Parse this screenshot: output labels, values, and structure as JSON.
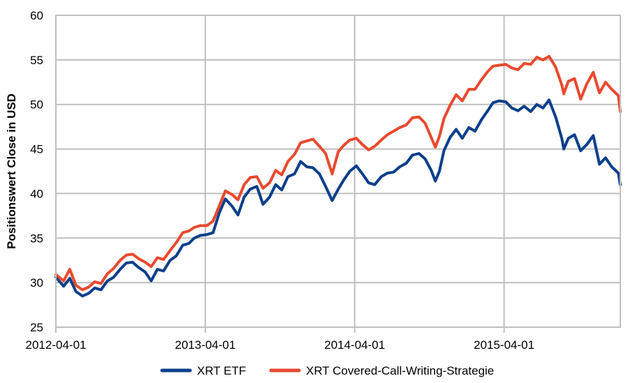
{
  "chart_data": {
    "type": "line",
    "title": "",
    "xlabel": "",
    "ylabel": "Positionswert Close in USD",
    "xlim": [
      "2012-04-01",
      "2016-01-10"
    ],
    "ylim": [
      25,
      60
    ],
    "y_ticks": [
      25,
      30,
      35,
      40,
      45,
      50,
      55,
      60
    ],
    "x_ticks": [
      "2012-04-01",
      "2013-04-01",
      "2014-04-01",
      "2015-04-01"
    ],
    "grid": true,
    "legend": "bottom",
    "series": [
      {
        "name": "XRT ETF",
        "color": "#0b3f8a",
        "points": [
          [
            "2012-04-01",
            30.6
          ],
          [
            "2012-04-20",
            29.6
          ],
          [
            "2012-05-05",
            30.5
          ],
          [
            "2012-05-20",
            29.0
          ],
          [
            "2012-06-05",
            28.5
          ],
          [
            "2012-06-20",
            28.8
          ],
          [
            "2012-07-05",
            29.4
          ],
          [
            "2012-07-20",
            29.2
          ],
          [
            "2012-08-05",
            30.2
          ],
          [
            "2012-08-20",
            30.6
          ],
          [
            "2012-09-05",
            31.5
          ],
          [
            "2012-09-20",
            32.2
          ],
          [
            "2012-10-05",
            32.3
          ],
          [
            "2012-10-20",
            31.7
          ],
          [
            "2012-11-05",
            31.2
          ],
          [
            "2012-11-20",
            30.2
          ],
          [
            "2012-12-05",
            31.5
          ],
          [
            "2012-12-20",
            31.3
          ],
          [
            "2013-01-05",
            32.5
          ],
          [
            "2013-01-20",
            33.0
          ],
          [
            "2013-02-05",
            34.2
          ],
          [
            "2013-02-20",
            34.4
          ],
          [
            "2013-03-05",
            35.0
          ],
          [
            "2013-03-20",
            35.3
          ],
          [
            "2013-04-05",
            35.4
          ],
          [
            "2013-04-20",
            35.6
          ],
          [
            "2013-05-05",
            37.8
          ],
          [
            "2013-05-20",
            39.4
          ],
          [
            "2013-06-05",
            38.6
          ],
          [
            "2013-06-20",
            37.6
          ],
          [
            "2013-07-05",
            39.6
          ],
          [
            "2013-07-20",
            40.5
          ],
          [
            "2013-08-05",
            40.8
          ],
          [
            "2013-08-20",
            38.8
          ],
          [
            "2013-09-05",
            39.6
          ],
          [
            "2013-09-20",
            41.0
          ],
          [
            "2013-10-05",
            40.4
          ],
          [
            "2013-10-20",
            41.9
          ],
          [
            "2013-11-05",
            42.2
          ],
          [
            "2013-11-20",
            43.6
          ],
          [
            "2013-12-05",
            43.0
          ],
          [
            "2013-12-20",
            42.9
          ],
          [
            "2014-01-05",
            42.2
          ],
          [
            "2014-01-20",
            40.8
          ],
          [
            "2014-02-05",
            39.2
          ],
          [
            "2014-02-20",
            40.5
          ],
          [
            "2014-03-05",
            41.5
          ],
          [
            "2014-03-20",
            42.5
          ],
          [
            "2014-04-05",
            43.1
          ],
          [
            "2014-04-20",
            42.2
          ],
          [
            "2014-05-05",
            41.2
          ],
          [
            "2014-05-20",
            41.0
          ],
          [
            "2014-06-05",
            41.9
          ],
          [
            "2014-06-20",
            42.3
          ],
          [
            "2014-07-05",
            42.4
          ],
          [
            "2014-07-20",
            43.0
          ],
          [
            "2014-08-05",
            43.4
          ],
          [
            "2014-08-20",
            44.3
          ],
          [
            "2014-09-05",
            44.5
          ],
          [
            "2014-09-20",
            43.9
          ],
          [
            "2014-10-05",
            42.6
          ],
          [
            "2014-10-15",
            41.4
          ],
          [
            "2014-10-25",
            42.5
          ],
          [
            "2014-11-05",
            44.8
          ],
          [
            "2014-11-20",
            46.3
          ],
          [
            "2014-12-05",
            47.2
          ],
          [
            "2014-12-20",
            46.2
          ],
          [
            "2015-01-05",
            47.4
          ],
          [
            "2015-01-20",
            47.0
          ],
          [
            "2015-02-05",
            48.3
          ],
          [
            "2015-02-20",
            49.3
          ],
          [
            "2015-03-05",
            50.2
          ],
          [
            "2015-03-20",
            50.4
          ],
          [
            "2015-04-05",
            50.3
          ],
          [
            "2015-04-20",
            49.6
          ],
          [
            "2015-05-05",
            49.3
          ],
          [
            "2015-05-20",
            49.8
          ],
          [
            "2015-06-05",
            49.2
          ],
          [
            "2015-06-20",
            50.0
          ],
          [
            "2015-07-05",
            49.6
          ],
          [
            "2015-07-20",
            50.5
          ],
          [
            "2015-08-05",
            48.6
          ],
          [
            "2015-08-20",
            46.2
          ],
          [
            "2015-08-25",
            45.0
          ],
          [
            "2015-09-05",
            46.2
          ],
          [
            "2015-09-20",
            46.6
          ],
          [
            "2015-10-05",
            44.8
          ],
          [
            "2015-10-20",
            45.5
          ],
          [
            "2015-11-05",
            46.5
          ],
          [
            "2015-11-20",
            43.3
          ],
          [
            "2015-12-05",
            44.0
          ],
          [
            "2015-12-20",
            43.0
          ],
          [
            "2016-01-05",
            42.3
          ],
          [
            "2016-01-10",
            41.0
          ]
        ]
      },
      {
        "name": "XRT Covered-Call-Writing-Strategie",
        "color": "#e84a2f",
        "points": [
          [
            "2012-04-01",
            30.9
          ],
          [
            "2012-04-20",
            30.2
          ],
          [
            "2012-05-05",
            31.5
          ],
          [
            "2012-05-20",
            29.7
          ],
          [
            "2012-06-05",
            29.2
          ],
          [
            "2012-06-20",
            29.5
          ],
          [
            "2012-07-05",
            30.1
          ],
          [
            "2012-07-20",
            29.9
          ],
          [
            "2012-08-05",
            31.0
          ],
          [
            "2012-08-20",
            31.6
          ],
          [
            "2012-09-05",
            32.5
          ],
          [
            "2012-09-20",
            33.1
          ],
          [
            "2012-10-05",
            33.2
          ],
          [
            "2012-10-20",
            32.7
          ],
          [
            "2012-11-05",
            32.3
          ],
          [
            "2012-11-20",
            31.8
          ],
          [
            "2012-12-05",
            32.8
          ],
          [
            "2012-12-20",
            32.6
          ],
          [
            "2013-01-05",
            33.6
          ],
          [
            "2013-01-20",
            34.5
          ],
          [
            "2013-02-05",
            35.6
          ],
          [
            "2013-02-20",
            35.8
          ],
          [
            "2013-03-05",
            36.2
          ],
          [
            "2013-03-20",
            36.4
          ],
          [
            "2013-04-05",
            36.4
          ],
          [
            "2013-04-20",
            36.9
          ],
          [
            "2013-05-05",
            38.6
          ],
          [
            "2013-05-20",
            40.3
          ],
          [
            "2013-06-05",
            39.9
          ],
          [
            "2013-06-20",
            39.3
          ],
          [
            "2013-07-05",
            41.0
          ],
          [
            "2013-07-20",
            41.8
          ],
          [
            "2013-08-05",
            41.9
          ],
          [
            "2013-08-20",
            40.6
          ],
          [
            "2013-09-05",
            41.2
          ],
          [
            "2013-09-20",
            42.6
          ],
          [
            "2013-10-05",
            42.1
          ],
          [
            "2013-10-20",
            43.6
          ],
          [
            "2013-11-05",
            44.4
          ],
          [
            "2013-11-20",
            45.7
          ],
          [
            "2013-12-05",
            45.9
          ],
          [
            "2013-12-20",
            46.1
          ],
          [
            "2014-01-05",
            45.3
          ],
          [
            "2014-01-20",
            44.5
          ],
          [
            "2014-02-05",
            42.2
          ],
          [
            "2014-02-20",
            44.7
          ],
          [
            "2014-03-05",
            45.4
          ],
          [
            "2014-03-20",
            46.0
          ],
          [
            "2014-04-05",
            46.2
          ],
          [
            "2014-04-20",
            45.5
          ],
          [
            "2014-05-05",
            44.9
          ],
          [
            "2014-05-20",
            45.3
          ],
          [
            "2014-06-05",
            46.0
          ],
          [
            "2014-06-20",
            46.6
          ],
          [
            "2014-07-05",
            47.0
          ],
          [
            "2014-07-20",
            47.4
          ],
          [
            "2014-08-05",
            47.7
          ],
          [
            "2014-08-20",
            48.5
          ],
          [
            "2014-09-05",
            48.6
          ],
          [
            "2014-09-20",
            47.9
          ],
          [
            "2014-10-05",
            46.3
          ],
          [
            "2014-10-15",
            45.2
          ],
          [
            "2014-10-25",
            46.4
          ],
          [
            "2014-11-05",
            48.4
          ],
          [
            "2014-11-20",
            49.9
          ],
          [
            "2014-12-05",
            51.1
          ],
          [
            "2014-12-20",
            50.4
          ],
          [
            "2015-01-05",
            51.7
          ],
          [
            "2015-01-20",
            51.7
          ],
          [
            "2015-02-05",
            52.8
          ],
          [
            "2015-02-20",
            53.7
          ],
          [
            "2015-03-05",
            54.3
          ],
          [
            "2015-03-20",
            54.4
          ],
          [
            "2015-04-05",
            54.5
          ],
          [
            "2015-04-20",
            54.1
          ],
          [
            "2015-05-05",
            53.9
          ],
          [
            "2015-05-20",
            54.6
          ],
          [
            "2015-06-05",
            54.5
          ],
          [
            "2015-06-20",
            55.3
          ],
          [
            "2015-07-05",
            55.0
          ],
          [
            "2015-07-20",
            55.4
          ],
          [
            "2015-08-05",
            54.2
          ],
          [
            "2015-08-20",
            52.2
          ],
          [
            "2015-08-25",
            51.2
          ],
          [
            "2015-09-05",
            52.6
          ],
          [
            "2015-09-20",
            52.9
          ],
          [
            "2015-10-05",
            50.6
          ],
          [
            "2015-10-20",
            52.3
          ],
          [
            "2015-11-05",
            53.6
          ],
          [
            "2015-11-20",
            51.3
          ],
          [
            "2015-12-05",
            52.5
          ],
          [
            "2015-12-20",
            51.7
          ],
          [
            "2016-01-05",
            51.0
          ],
          [
            "2016-01-10",
            49.2
          ]
        ]
      }
    ]
  }
}
